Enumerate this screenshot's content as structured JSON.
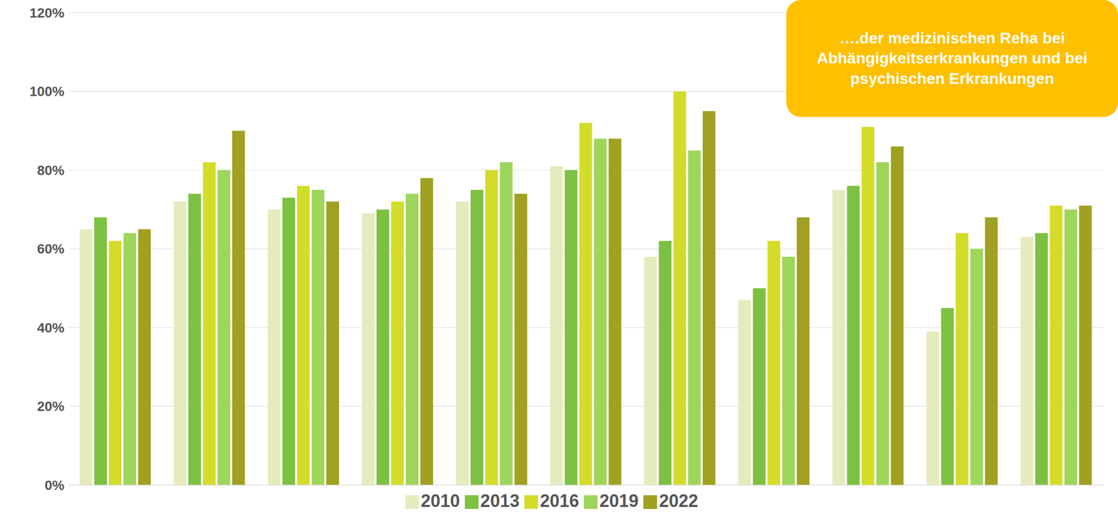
{
  "chart_data": {
    "type": "bar",
    "annotation": "….der medizinischen Reha bei Abhängigkeitserkrankungen und bei psychischen Erkrankungen",
    "categories": [
      null,
      null,
      null,
      null,
      null,
      null,
      null,
      null,
      null,
      null,
      null
    ],
    "series": [
      {
        "name": "2010",
        "color": "#e6ebbe",
        "values": [
          65,
          72,
          70,
          69,
          72,
          81,
          58,
          47,
          75,
          39,
          63
        ]
      },
      {
        "name": "2013",
        "color": "#7dc142",
        "values": [
          68,
          74,
          73,
          70,
          75,
          80,
          62,
          50,
          76,
          45,
          64
        ]
      },
      {
        "name": "2016",
        "color": "#d4dc2a",
        "values": [
          62,
          82,
          76,
          72,
          80,
          92,
          100,
          62,
          91,
          64,
          71
        ]
      },
      {
        "name": "2019",
        "color": "#9ed55b",
        "values": [
          64,
          80,
          75,
          74,
          82,
          88,
          85,
          58,
          82,
          60,
          70
        ]
      },
      {
        "name": "2022",
        "color": "#a0a021",
        "values": [
          65,
          90,
          72,
          78,
          74,
          88,
          95,
          68,
          86,
          68,
          71
        ]
      }
    ],
    "ylim": [
      0,
      120
    ],
    "yticks": [
      {
        "value": 0,
        "label": "0%"
      },
      {
        "value": 20,
        "label": "20%"
      },
      {
        "value": 40,
        "label": "40%"
      },
      {
        "value": 60,
        "label": "60%"
      },
      {
        "value": 80,
        "label": "80%"
      },
      {
        "value": 100,
        "label": "100%"
      },
      {
        "value": 120,
        "label": "120%"
      }
    ],
    "grid": true,
    "legend": "bottom"
  }
}
